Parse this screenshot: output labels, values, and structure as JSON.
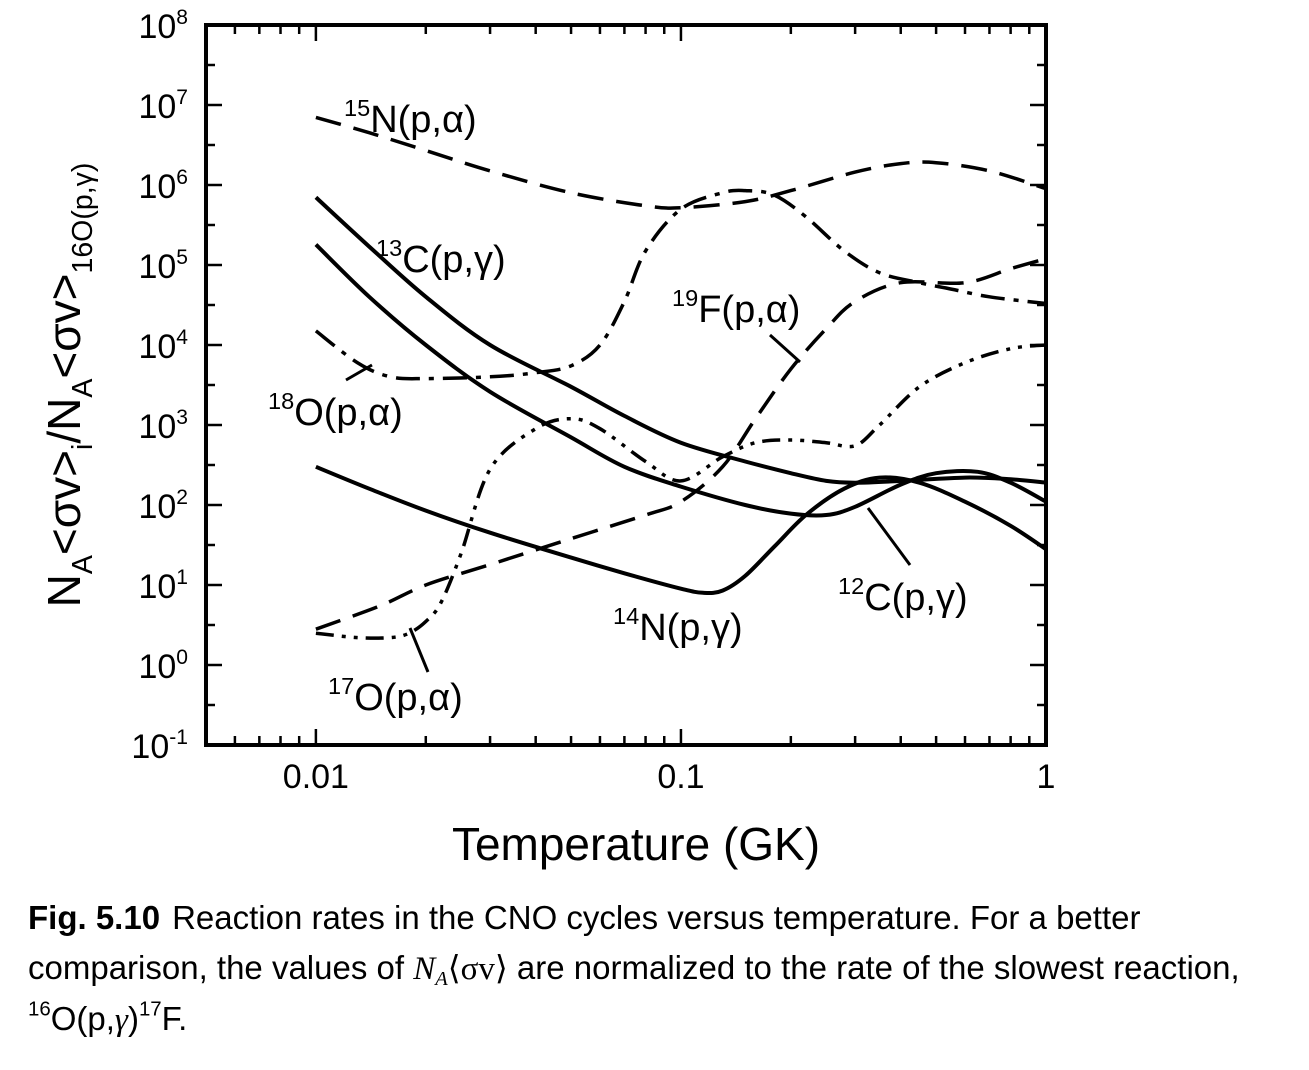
{
  "chart_data": {
    "type": "line",
    "x_scale": "log",
    "y_scale": "log",
    "xlim": [
      0.005,
      1
    ],
    "ylim": [
      0.1,
      100000000
    ],
    "grid": false,
    "xlabel": "Temperature  (GK)",
    "ylabel": {
      "parts": [
        "N",
        "A",
        "<σv>",
        "i",
        "/N",
        "A",
        "<σv>",
        "16O(p,γ)"
      ]
    },
    "x_ticks": [
      {
        "value": 0.01,
        "label": "0.01"
      },
      {
        "value": 0.1,
        "label": "0.1"
      },
      {
        "value": 1,
        "label": "1"
      }
    ],
    "y_ticks": [
      {
        "value": 0.1,
        "mantissa": "10",
        "exp": "-1"
      },
      {
        "value": 1,
        "mantissa": "10",
        "exp": "0"
      },
      {
        "value": 10,
        "mantissa": "10",
        "exp": "1"
      },
      {
        "value": 100,
        "mantissa": "10",
        "exp": "2"
      },
      {
        "value": 1000,
        "mantissa": "10",
        "exp": "3"
      },
      {
        "value": 10000,
        "mantissa": "10",
        "exp": "4"
      },
      {
        "value": 100000,
        "mantissa": "10",
        "exp": "5"
      },
      {
        "value": 1000000,
        "mantissa": "10",
        "exp": "6"
      },
      {
        "value": 10000000,
        "mantissa": "10",
        "exp": "7"
      },
      {
        "value": 100000000,
        "mantissa": "10",
        "exp": "8"
      }
    ],
    "series": [
      {
        "name": "15N(p,α)",
        "style": "dashed",
        "width": 3.5,
        "x": [
          0.01,
          0.014,
          0.02,
          0.03,
          0.05,
          0.08,
          0.1,
          0.15,
          0.2,
          0.3,
          0.4,
          0.5,
          0.7,
          1.0
        ],
        "y": [
          7000000,
          4500000,
          2700000,
          1500000,
          800000,
          550000,
          520000,
          620000,
          850000,
          1450000,
          1850000,
          1900000,
          1500000,
          900000
        ]
      },
      {
        "name": "13C(p,γ)",
        "style": "solid",
        "width": 4,
        "x": [
          0.01,
          0.014,
          0.02,
          0.03,
          0.05,
          0.07,
          0.1,
          0.15,
          0.2,
          0.25,
          0.3,
          0.4,
          0.6,
          0.8,
          1.0
        ],
        "y": [
          700000,
          170000,
          40000,
          10000,
          3000,
          1300,
          600,
          350,
          250,
          200,
          190,
          200,
          220,
          210,
          190
        ]
      },
      {
        "name": "12C(p,γ)",
        "style": "solid",
        "width": 4,
        "x": [
          0.01,
          0.014,
          0.02,
          0.03,
          0.05,
          0.07,
          0.1,
          0.15,
          0.2,
          0.25,
          0.3,
          0.4,
          0.5,
          0.65,
          0.8,
          1.0
        ],
        "y": [
          180000,
          40000,
          10000,
          2600,
          700,
          300,
          170,
          100,
          78,
          75,
          95,
          180,
          250,
          260,
          190,
          110
        ]
      },
      {
        "name": "14N(p,γ)",
        "style": "solid",
        "width": 4,
        "x": [
          0.01,
          0.014,
          0.02,
          0.03,
          0.05,
          0.07,
          0.1,
          0.115,
          0.13,
          0.15,
          0.18,
          0.22,
          0.28,
          0.35,
          0.45,
          0.6,
          0.8,
          1.0
        ],
        "y": [
          300,
          160,
          85,
          45,
          22,
          14,
          9,
          8,
          8.5,
          13,
          30,
          75,
          160,
          220,
          190,
          110,
          55,
          28
        ]
      },
      {
        "name": "19F(p,α)",
        "style": "dashed",
        "width": 3.5,
        "x": [
          0.01,
          0.015,
          0.02,
          0.03,
          0.05,
          0.08,
          0.1,
          0.13,
          0.16,
          0.2,
          0.25,
          0.3,
          0.4,
          0.6,
          0.8,
          1.0
        ],
        "y": [
          2.8,
          5.5,
          10,
          18,
          38,
          75,
          110,
          300,
          1200,
          5000,
          16000,
          35000,
          60000,
          60000,
          90000,
          120000
        ]
      },
      {
        "name": "18O(p,α)",
        "style": "dash-dot",
        "width": 3.5,
        "x": [
          0.01,
          0.013,
          0.016,
          0.02,
          0.03,
          0.04,
          0.05,
          0.06,
          0.07,
          0.08,
          0.1,
          0.13,
          0.15,
          0.18,
          0.22,
          0.28,
          0.35,
          0.45,
          0.55,
          0.7,
          1.0
        ],
        "y": [
          15000,
          6000,
          4000,
          3800,
          4000,
          4500,
          5500,
          10000,
          35000,
          150000,
          500000,
          800000,
          850000,
          750000,
          400000,
          150000,
          80000,
          60000,
          50000,
          40000,
          33000
        ]
      },
      {
        "name": "17O(p,α)",
        "style": "dash-dot-dot",
        "width": 3.5,
        "x": [
          0.01,
          0.013,
          0.016,
          0.018,
          0.02,
          0.022,
          0.025,
          0.03,
          0.04,
          0.05,
          0.06,
          0.08,
          0.1,
          0.13,
          0.16,
          0.2,
          0.25,
          0.3,
          0.35,
          0.45,
          0.6,
          0.8,
          1.0
        ],
        "y": [
          2.5,
          2.2,
          2.2,
          2.5,
          3.5,
          6,
          25,
          280,
          900,
          1200,
          900,
          350,
          200,
          400,
          600,
          650,
          600,
          550,
          1000,
          3000,
          6000,
          9000,
          10000
        ]
      }
    ],
    "annotations": [
      {
        "text": "15N(p,α)",
        "iso": "15",
        "rest": "N(p,α)"
      },
      {
        "text": "13C(p,γ)",
        "iso": "13",
        "rest": "C(p,γ)"
      },
      {
        "text": "19F(p,α)",
        "iso": "19",
        "rest": "F(p,α)"
      },
      {
        "text": "18O(p,α)",
        "iso": "18",
        "rest": "O(p,α)"
      },
      {
        "text": "14N(p,γ)",
        "iso": "14",
        "rest": "N(p,γ)"
      },
      {
        "text": "12C(p,γ)",
        "iso": "12",
        "rest": "C(p,γ)"
      },
      {
        "text": "17O(p,α)",
        "iso": "17",
        "rest": "O(p,α)"
      }
    ]
  },
  "caption": {
    "fig_label": "Fig. 5.10",
    "text_1": "Reaction rates in the CNO cycles versus temperature. For a better comparison, the values of ",
    "math_N": "N",
    "math_sub": "A",
    "math_sigma_v": "⟨σv⟩",
    "text_2": " are normalized to the rate of the slowest reaction, ",
    "reaction_iso": "16",
    "reaction_body_1": "O(p,",
    "reaction_gamma": "γ",
    "reaction_body_2": ")",
    "product_iso": "17",
    "product_body": "F."
  }
}
